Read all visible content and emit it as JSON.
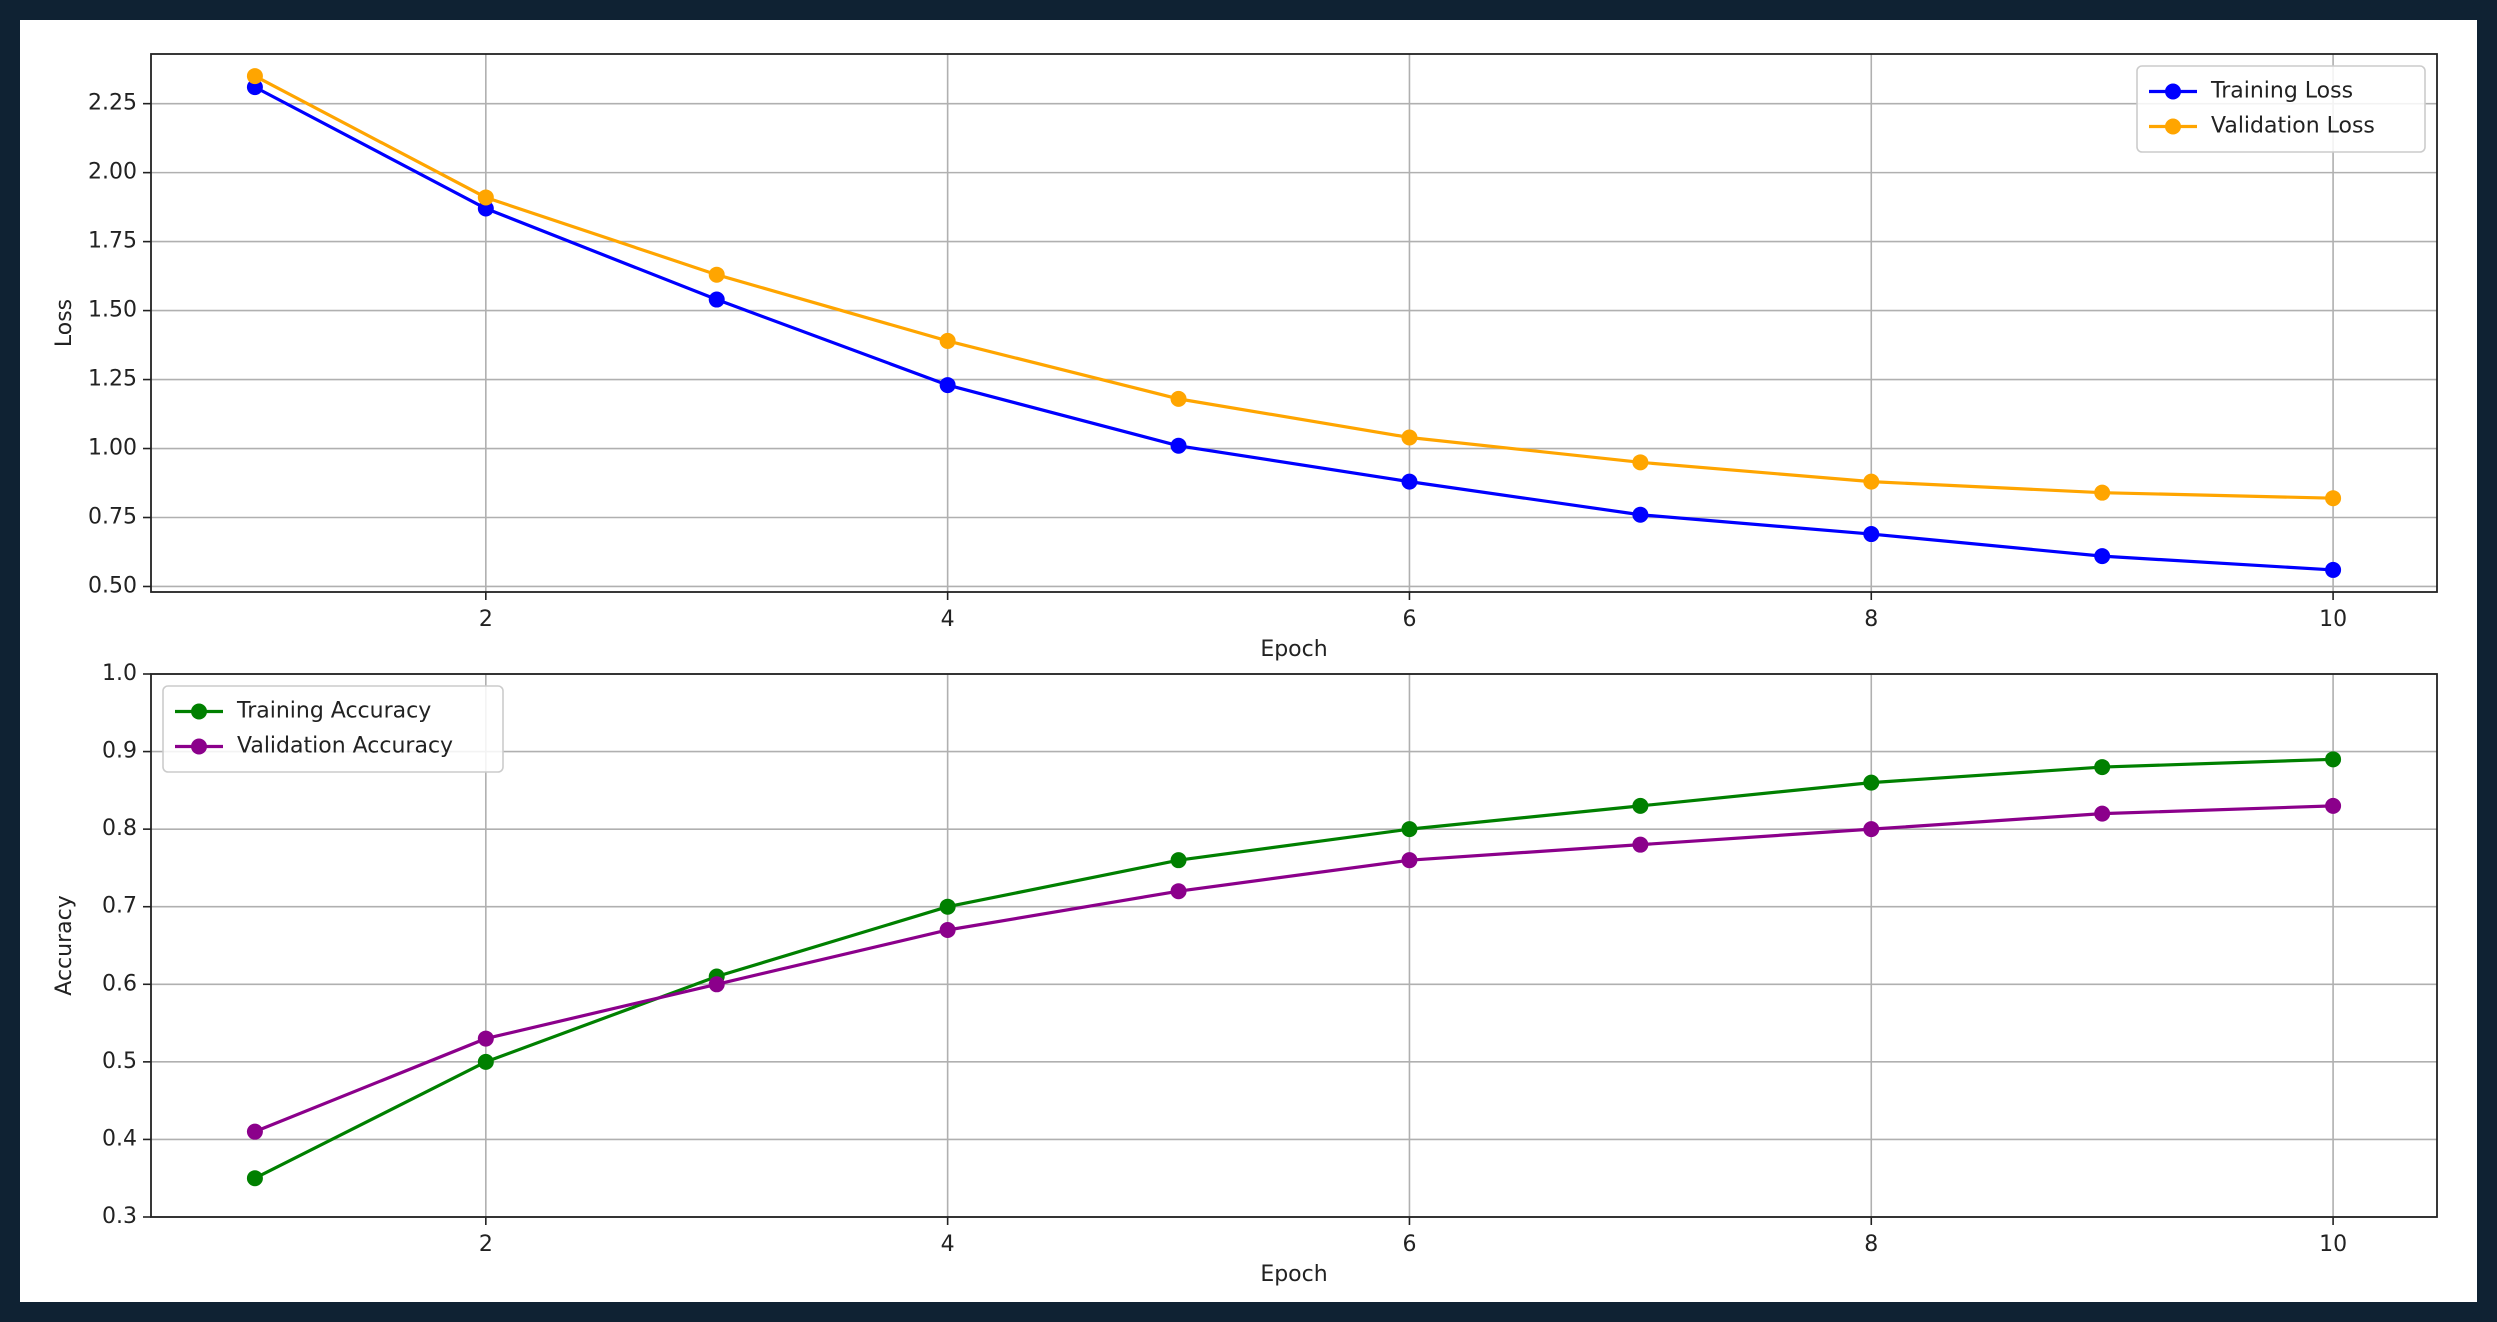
{
  "chart_data": [
    {
      "type": "line",
      "xlabel": "Epoch",
      "ylabel": "Loss",
      "x": [
        1,
        2,
        3,
        4,
        5,
        6,
        7,
        8,
        9,
        10
      ],
      "series": [
        {
          "name": "Training Loss",
          "color": "#0000ff",
          "values": [
            2.31,
            1.87,
            1.54,
            1.23,
            1.01,
            0.88,
            0.76,
            0.69,
            0.61,
            0.56
          ]
        },
        {
          "name": "Validation Loss",
          "color": "#ffa500",
          "values": [
            2.35,
            1.91,
            1.63,
            1.39,
            1.18,
            1.04,
            0.95,
            0.88,
            0.84,
            0.82
          ]
        }
      ],
      "xlim": [
        0.55,
        10.45
      ],
      "xticks": [
        2,
        4,
        6,
        8,
        10
      ],
      "ylim": [
        0.48,
        2.43
      ],
      "yticks": [
        {
          "value": 0.5,
          "label": "0.50"
        },
        0.75,
        {
          "value": 1,
          "label": "1.00"
        },
        1.25,
        {
          "value": 1.5,
          "label": "1.50"
        },
        1.75,
        {
          "value": 2,
          "label": "2.00"
        },
        2.25
      ],
      "grid": true,
      "legend": "upper right"
    },
    {
      "type": "line",
      "xlabel": "Epoch",
      "ylabel": "Accuracy",
      "x": [
        1,
        2,
        3,
        4,
        5,
        6,
        7,
        8,
        9,
        10
      ],
      "series": [
        {
          "name": "Training Accuracy",
          "color": "#008000",
          "values": [
            0.35,
            0.5,
            0.61,
            0.7,
            0.76,
            0.8,
            0.83,
            0.86,
            0.88,
            0.89
          ]
        },
        {
          "name": "Validation Accuracy",
          "color": "#8b008b",
          "values": [
            0.41,
            0.53,
            0.6,
            0.67,
            0.72,
            0.76,
            0.78,
            0.8,
            0.82,
            0.83
          ]
        }
      ],
      "xlim": [
        0.55,
        10.45
      ],
      "xticks": [
        2,
        4,
        6,
        8,
        10
      ],
      "ylim": [
        0.3,
        1.0
      ],
      "yticks": [
        0.3,
        0.4,
        0.5,
        0.6,
        0.7,
        0.8,
        0.9,
        {
          "value": 1,
          "label": "1.0"
        }
      ],
      "grid": true,
      "legend": "upper left"
    }
  ]
}
